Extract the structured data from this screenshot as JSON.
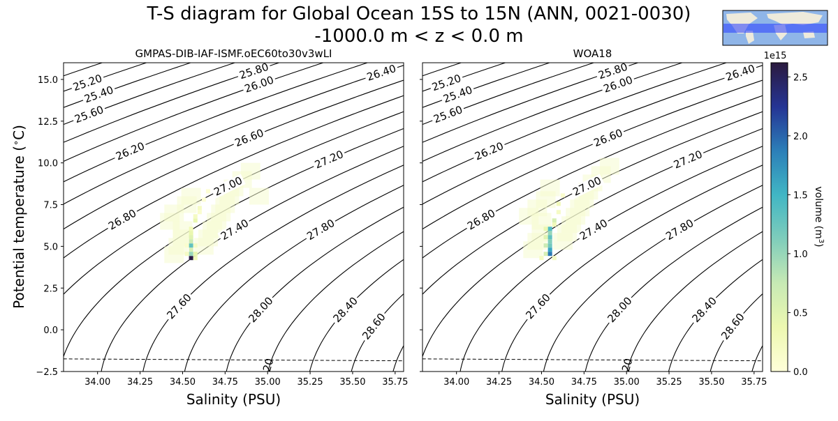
{
  "figure": {
    "title_line1": "T-S diagram for Global Ocean 15S to 15N (ANN, 0021-0030)",
    "title_line2": "-1000.0 m < z < 0.0 m",
    "inset_map": {
      "icon": "world-map-icon",
      "band_color": "#2a3cff",
      "ocean_color": "#8fb5e8",
      "land_color": "#eeeadb"
    }
  },
  "chart_data": [
    {
      "type": "heatmap",
      "title": "GMPAS-DIB-IAF-ISMF.oEC60to30v3wLI",
      "xlabel": "Salinity (PSU)",
      "ylabel": "Potential temperature ($^\\circ$C)",
      "xlim": [
        33.8,
        35.8
      ],
      "ylim": [
        -2.5,
        16.0
      ],
      "xticks": [
        "34.00",
        "34.25",
        "34.50",
        "34.75",
        "35.00",
        "35.25",
        "35.50",
        "35.75"
      ],
      "yticks": [
        "−2.5",
        "0.0",
        "2.5",
        "5.0",
        "7.5",
        "10.0",
        "12.5",
        "15.0"
      ],
      "density_contour_labels": [
        "25.20",
        "25.40",
        "25.60",
        "25.80",
        "26.00",
        "26.20",
        "26.40",
        "26.60",
        "26.80",
        "27.00",
        "27.20",
        "27.40",
        "27.60",
        "27.80",
        "28.00",
        "28.40",
        "28.60"
      ],
      "freezing_line_label": "20",
      "volume_cells": [
        {
          "s": 34.55,
          "t": 4.3,
          "v": 2600000000000000.0
        },
        {
          "s": 34.55,
          "t": 4.55,
          "v": 1000000000000000.0
        },
        {
          "s": 34.55,
          "t": 4.8,
          "v": 600000000000000.0
        },
        {
          "s": 34.55,
          "t": 5.05,
          "v": 1300000000000000.0
        },
        {
          "s": 34.55,
          "t": 5.3,
          "v": 700000000000000.0
        },
        {
          "s": 34.55,
          "t": 5.55,
          "v": 500000000000000.0
        },
        {
          "s": 34.55,
          "t": 5.8,
          "v": 400000000000000.0
        },
        {
          "s": 34.55,
          "t": 6.05,
          "v": 300000000000000.0
        },
        {
          "s": 34.575,
          "t": 4.3,
          "v": 300000000000000.0
        },
        {
          "s": 34.575,
          "t": 4.55,
          "v": 400000000000000.0
        },
        {
          "s": 34.575,
          "t": 5.05,
          "v": 200000000000000.0
        },
        {
          "s": 34.525,
          "t": 4.55,
          "v": 200000000000000.0
        },
        {
          "s": 34.525,
          "t": 5.05,
          "v": 100000000000000.0
        },
        {
          "s": 34.575,
          "t": 6.55,
          "v": 400000000000000.0
        },
        {
          "s": 34.575,
          "t": 6.8,
          "v": 200000000000000.0
        },
        {
          "s": 34.6,
          "t": 7.05,
          "v": 100000000000000.0
        },
        {
          "s": 34.6,
          "t": 7.3,
          "v": 200000000000000.0
        },
        {
          "s": 34.625,
          "t": 7.8,
          "v": 50000000000000.0
        },
        {
          "s": 34.65,
          "t": 8.3,
          "v": 50000000000000.0
        }
      ],
      "haze_cells": [
        {
          "s": 34.45,
          "t": 4.5
        },
        {
          "s": 34.475,
          "t": 5.0
        },
        {
          "s": 34.5,
          "t": 5.5
        },
        {
          "s": 34.5,
          "t": 6.0
        },
        {
          "s": 34.625,
          "t": 5.0
        },
        {
          "s": 34.65,
          "t": 5.5
        },
        {
          "s": 34.675,
          "t": 6.0
        },
        {
          "s": 34.7,
          "t": 6.5
        },
        {
          "s": 34.725,
          "t": 7.0
        },
        {
          "s": 34.75,
          "t": 7.5
        },
        {
          "s": 34.775,
          "t": 8.0
        },
        {
          "s": 34.8,
          "t": 8.5
        },
        {
          "s": 34.85,
          "t": 9.0
        },
        {
          "s": 34.9,
          "t": 9.5
        },
        {
          "s": 34.95,
          "t": 8.0
        },
        {
          "s": 34.425,
          "t": 6.5
        },
        {
          "s": 34.45,
          "t": 7.0
        },
        {
          "s": 34.525,
          "t": 7.5
        },
        {
          "s": 34.55,
          "t": 8.0
        }
      ]
    },
    {
      "type": "heatmap",
      "title": "WOA18",
      "xlabel": "Salinity (PSU)",
      "ylabel": "",
      "xlim": [
        33.8,
        35.8
      ],
      "ylim": [
        -2.5,
        16.0
      ],
      "xticks": [
        "34.00",
        "34.25",
        "34.50",
        "34.75",
        "35.00",
        "35.25",
        "35.50",
        "35.75"
      ],
      "density_contour_labels": [
        "25.20",
        "25.40",
        "25.60",
        "25.80",
        "26.00",
        "26.20",
        "26.40",
        "26.60",
        "26.80",
        "27.00",
        "27.20",
        "27.40",
        "27.60",
        "27.80",
        "28.00",
        "28.40",
        "28.60"
      ],
      "freezing_line_label": "20",
      "volume_cells": [
        {
          "s": 34.525,
          "t": 4.55,
          "v": 600000000000000.0
        },
        {
          "s": 34.55,
          "t": 4.55,
          "v": 1900000000000000.0
        },
        {
          "s": 34.55,
          "t": 4.8,
          "v": 1600000000000000.0
        },
        {
          "s": 34.55,
          "t": 5.05,
          "v": 1200000000000000.0
        },
        {
          "s": 34.55,
          "t": 5.3,
          "v": 1100000000000000.0
        },
        {
          "s": 34.55,
          "t": 5.55,
          "v": 1300000000000000.0
        },
        {
          "s": 34.55,
          "t": 5.8,
          "v": 1000000000000000.0
        },
        {
          "s": 34.55,
          "t": 6.05,
          "v": 1400000000000000.0
        },
        {
          "s": 34.525,
          "t": 5.05,
          "v": 700000000000000.0
        },
        {
          "s": 34.525,
          "t": 5.55,
          "v": 500000000000000.0
        },
        {
          "s": 34.525,
          "t": 6.05,
          "v": 400000000000000.0
        },
        {
          "s": 34.575,
          "t": 6.55,
          "v": 600000000000000.0
        },
        {
          "s": 34.575,
          "t": 6.3,
          "v": 300000000000000.0
        },
        {
          "s": 34.6,
          "t": 7.05,
          "v": 200000000000000.0
        },
        {
          "s": 34.6,
          "t": 7.55,
          "v": 300000000000000.0
        },
        {
          "s": 34.625,
          "t": 8.05,
          "v": 100000000000000.0
        },
        {
          "s": 34.5,
          "t": 4.3,
          "v": 200000000000000.0
        },
        {
          "s": 34.575,
          "t": 4.3,
          "v": 200000000000000.0
        }
      ],
      "haze_cells": [
        {
          "s": 34.45,
          "t": 4.8
        },
        {
          "s": 34.475,
          "t": 5.3
        },
        {
          "s": 34.5,
          "t": 5.8
        },
        {
          "s": 34.5,
          "t": 6.5
        },
        {
          "s": 34.625,
          "t": 5.3
        },
        {
          "s": 34.65,
          "t": 5.8
        },
        {
          "s": 34.675,
          "t": 6.3
        },
        {
          "s": 34.7,
          "t": 6.8
        },
        {
          "s": 34.725,
          "t": 7.3
        },
        {
          "s": 34.75,
          "t": 7.8
        },
        {
          "s": 34.775,
          "t": 8.3
        },
        {
          "s": 34.8,
          "t": 8.8
        },
        {
          "s": 34.85,
          "t": 9.3
        },
        {
          "s": 34.9,
          "t": 9.8
        },
        {
          "s": 34.425,
          "t": 6.8
        },
        {
          "s": 34.475,
          "t": 7.3
        },
        {
          "s": 34.525,
          "t": 7.8
        },
        {
          "s": 34.55,
          "t": 8.5
        }
      ]
    }
  ],
  "colorbar": {
    "label": "volume (m$^3$)",
    "offset_label": "1e15",
    "min": 0.0,
    "max": 2.62,
    "ticks": [
      "0.0",
      "0.5",
      "1.0",
      "1.5",
      "2.0",
      "2.5"
    ],
    "tick_values": [
      0.0,
      0.5,
      1.0,
      1.5,
      2.0,
      2.5
    ],
    "colormap_stops": [
      "#ffffd9",
      "#edf8b1",
      "#c7e9b4",
      "#7fcdbb",
      "#41b6c4",
      "#2c7fb8",
      "#253494",
      "#2b1a3f"
    ]
  }
}
